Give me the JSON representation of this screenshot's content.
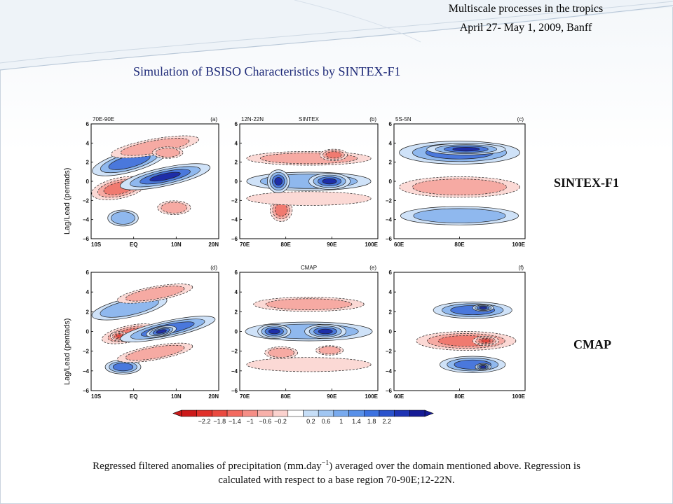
{
  "header": {
    "line1": "Multiscale processes in the tropics",
    "line2": "April 27- May 1, 2009, Banff"
  },
  "title": "Simulation of BSISO Characteristics  by SINTEX-F1",
  "row_labels": {
    "top": "SINTEX-F1",
    "bottom": "CMAP"
  },
  "caption": {
    "before_sup": "Regressed filtered anomalies of precipitation (mm.day",
    "sup": "−1",
    "after_sup": ") averaged over the domain mentioned above. Regression is",
    "line2": "calculated with respect to a base region 70-90E;12-22N."
  },
  "axis_title": "Lag/Lead (pentads)",
  "y_ticks": [
    "6",
    "4",
    "2",
    "0",
    "−2",
    "−4",
    "−6"
  ],
  "colors": {
    "neg_dark": "#e0302a",
    "pos_dark": "#2020b0",
    "title_blue": "#1e2a78"
  },
  "chart_data": [
    {
      "type": "heatmap",
      "id": "a",
      "tag": "(a)",
      "left_label": "70E-90E",
      "center_label": "",
      "xticks": [
        "10S",
        "EQ",
        "10N",
        "20N"
      ],
      "ylim": [
        -6,
        6
      ]
    },
    {
      "type": "heatmap",
      "id": "b",
      "tag": "(b)",
      "left_label": "12N-22N",
      "center_label": "SINTEX",
      "xticks": [
        "70E",
        "80E",
        "90E",
        "100E"
      ],
      "ylim": [
        -6,
        6
      ]
    },
    {
      "type": "heatmap",
      "id": "c",
      "tag": "(c)",
      "left_label": "5S-5N",
      "center_label": "",
      "xticks": [
        "60E",
        "80E",
        "100E"
      ],
      "ylim": [
        -6,
        6
      ]
    },
    {
      "type": "heatmap",
      "id": "d",
      "tag": "(d)",
      "left_label": "",
      "center_label": "",
      "xticks": [
        "10S",
        "EQ",
        "10N",
        "20N"
      ],
      "ylim": [
        -6,
        6
      ]
    },
    {
      "type": "heatmap",
      "id": "e",
      "tag": "(e)",
      "left_label": "",
      "center_label": "CMAP",
      "xticks": [
        "70E",
        "80E",
        "90E",
        "100E"
      ],
      "ylim": [
        -6,
        6
      ]
    },
    {
      "type": "heatmap",
      "id": "f",
      "tag": "(f)",
      "left_label": "",
      "center_label": "",
      "xticks": [
        "60E",
        "80E",
        "100E"
      ],
      "ylim": [
        -6,
        6
      ]
    }
  ],
  "colorbar": {
    "labels": [
      "−2.2",
      "−1.8",
      "−1.4",
      "−1",
      "−0.6",
      "−0.2",
      "0.2",
      "0.6",
      "1",
      "1.4",
      "1.8",
      "2.2"
    ],
    "colors": [
      "#cc1a1a",
      "#e0302a",
      "#ea4a40",
      "#f26a60",
      "#f58e86",
      "#f8b0aa",
      "#fbd2ce",
      "#ffffff",
      "#c6def7",
      "#a0c6f2",
      "#78aaee",
      "#5890e8",
      "#3c72e0",
      "#2a52cc",
      "#1e34b4",
      "#161c96"
    ]
  }
}
